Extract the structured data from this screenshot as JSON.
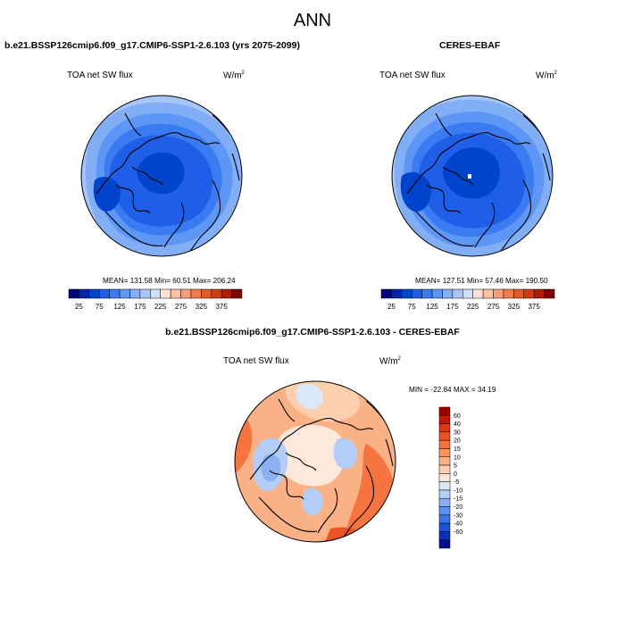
{
  "main_title": "ANN",
  "colors": {
    "coastline": "#000000",
    "frame": "#000000"
  },
  "panels": [
    {
      "id": "model",
      "title": "b.e21.BSSP126cmip6.f09_g17.CMIP6-SSP1-2.6.103 (yrs 2075-2099)",
      "variable": "TOA net SW flux",
      "units_base": "W/m",
      "units_exp": "2",
      "stats": {
        "mean_label": "MEAN=",
        "mean": "131.58",
        "min_label": "Min=",
        "min": "60.51",
        "max_label": "Max=",
        "max": "206.24"
      },
      "stats_text": "MEAN= 131.58  Min=  60.51  Max= 206.24",
      "colorbar": {
        "ticks": [
          "25",
          "75",
          "125",
          "175",
          "225",
          "275",
          "325",
          "375"
        ],
        "colors": [
          "#00007f",
          "#0026a8",
          "#0044cc",
          "#1f5ee6",
          "#3a7bf2",
          "#5d96f5",
          "#82aef6",
          "#a7c6f7",
          "#cfdff8",
          "#fde2d5",
          "#f9c1a6",
          "#f59e79",
          "#ef7d4f",
          "#e45b28",
          "#d03b12",
          "#ad1d08",
          "#7f0000"
        ]
      },
      "field_levels": [
        "#a7c6f7",
        "#82aef6",
        "#5d96f5",
        "#3a7bf2",
        "#1f5ee6",
        "#0044cc"
      ]
    },
    {
      "id": "obs",
      "title": "CERES-EBAF",
      "variable": "TOA net SW flux",
      "units_base": "W/m",
      "units_exp": "2",
      "stats_text": "MEAN= 127.51  Min=  57.46  Max= 190.50",
      "colorbar": {
        "ticks": [
          "25",
          "75",
          "125",
          "175",
          "225",
          "275",
          "325",
          "375"
        ],
        "colors": [
          "#00007f",
          "#0026a8",
          "#0044cc",
          "#1f5ee6",
          "#3a7bf2",
          "#5d96f5",
          "#82aef6",
          "#a7c6f7",
          "#cfdff8",
          "#fde2d5",
          "#f9c1a6",
          "#f59e79",
          "#ef7d4f",
          "#e45b28",
          "#d03b12",
          "#ad1d08",
          "#7f0000"
        ]
      }
    }
  ],
  "diff": {
    "title": "b.e21.BSSP126cmip6.f09_g17.CMIP6-SSP1-2.6.103 - CERES-EBAF",
    "variable": "TOA net SW flux",
    "units_base": "W/m",
    "units_exp": "2",
    "stats_text": "MIN = -22.84 MAX =  34.19",
    "colorbar": {
      "ticks": [
        "60",
        "40",
        "30",
        "20",
        "15",
        "10",
        "5",
        "0",
        "-5",
        "-10",
        "-15",
        "-20",
        "-30",
        "-40",
        "-60"
      ],
      "colors": [
        "#9e0000",
        "#c41a04",
        "#dd3612",
        "#ec5428",
        "#f5743f",
        "#f8935e",
        "#fab185",
        "#fccfae",
        "#fde9dc",
        "#dce8f8",
        "#b3cdf7",
        "#8ab1f5",
        "#5e92f1",
        "#3a72e8",
        "#1d51d6",
        "#0a30b8",
        "#00108f"
      ]
    }
  }
}
